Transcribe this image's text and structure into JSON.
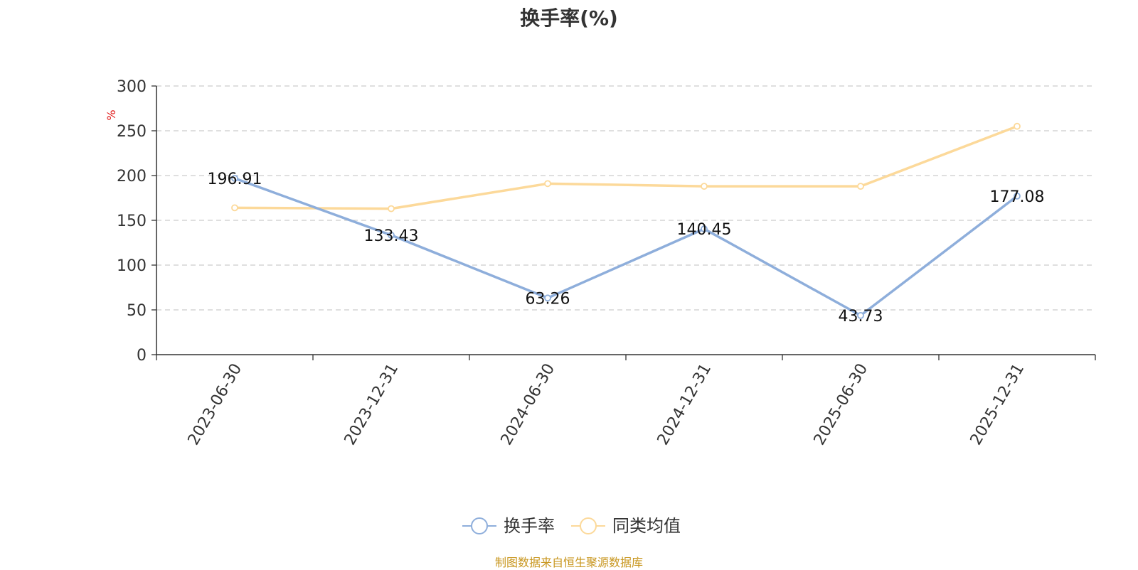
{
  "colors": {
    "series_1": "#8eaedb",
    "series_2": "#fcd99a",
    "axis": "#333333",
    "grid": "#cccccc",
    "unit_label": "#e01a1a",
    "footer": "#c8961e"
  },
  "chart_data": {
    "type": "line",
    "title": "换手率(%)",
    "ylabel": "%",
    "xlabel": "",
    "categories": [
      "2023-06-30",
      "2023-12-31",
      "2024-06-30",
      "2024-12-31",
      "2025-06-30",
      "2025-12-31"
    ],
    "ylim": [
      0,
      300
    ],
    "yticks": [
      0,
      50,
      100,
      150,
      200,
      250,
      300
    ],
    "grid": true,
    "legend_position": "bottom-center",
    "series": [
      {
        "name": "换手率",
        "values": [
          196.91,
          133.43,
          63.26,
          140.45,
          43.73,
          177.08
        ],
        "data_labels": [
          "196.91",
          "133.43",
          "63.26",
          "140.45",
          "43.73",
          "177.08"
        ]
      },
      {
        "name": "同类均值",
        "values": [
          164,
          163,
          191,
          188,
          188,
          255
        ]
      }
    ]
  },
  "footer": {
    "source": "制图数据来自恒生聚源数据库"
  }
}
